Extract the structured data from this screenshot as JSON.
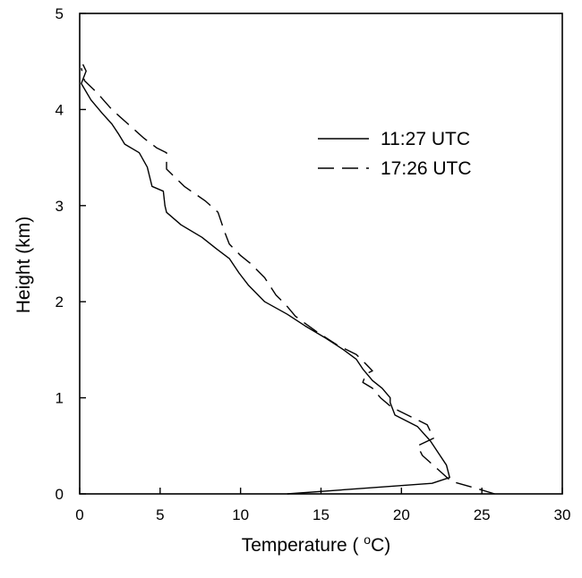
{
  "chart_data": {
    "type": "line",
    "xlabel": "Temperature (°C)",
    "ylabel": "Height (km)",
    "xlim": [
      0,
      30
    ],
    "ylim": [
      0,
      5
    ],
    "xticks": [
      0,
      5,
      10,
      15,
      20,
      25,
      30
    ],
    "yticks": [
      0,
      1,
      2,
      3,
      4,
      5
    ],
    "grid": false,
    "legend_position": "top-right",
    "series": [
      {
        "name": "11:27 UTC",
        "style": "solid",
        "points": [
          [
            12.9,
            0.0
          ],
          [
            21.9,
            0.11
          ],
          [
            23.0,
            0.17
          ],
          [
            22.8,
            0.3
          ],
          [
            21.8,
            0.55
          ],
          [
            21.0,
            0.7
          ],
          [
            19.6,
            0.82
          ],
          [
            19.3,
            0.95
          ],
          [
            19.3,
            1.0
          ],
          [
            18.8,
            1.1
          ],
          [
            18.2,
            1.18
          ],
          [
            17.6,
            1.3
          ],
          [
            17.2,
            1.4
          ],
          [
            16.4,
            1.5
          ],
          [
            15.3,
            1.62
          ],
          [
            14.0,
            1.75
          ],
          [
            12.9,
            1.87
          ],
          [
            11.5,
            2.0
          ],
          [
            10.5,
            2.17
          ],
          [
            9.9,
            2.3
          ],
          [
            9.3,
            2.45
          ],
          [
            8.5,
            2.55
          ],
          [
            7.6,
            2.67
          ],
          [
            6.3,
            2.8
          ],
          [
            5.4,
            2.93
          ],
          [
            5.3,
            3.0
          ],
          [
            5.2,
            3.15
          ],
          [
            4.5,
            3.2
          ],
          [
            4.2,
            3.4
          ],
          [
            3.7,
            3.55
          ],
          [
            2.8,
            3.64
          ],
          [
            2.4,
            3.75
          ],
          [
            2.0,
            3.85
          ],
          [
            1.4,
            3.96
          ],
          [
            0.7,
            4.1
          ],
          [
            0.1,
            4.27
          ],
          [
            0.4,
            4.4
          ],
          [
            0.2,
            4.47
          ]
        ]
      },
      {
        "name": "17:26 UTC",
        "style": "dashed",
        "points": [
          [
            25.8,
            0.0
          ],
          [
            24.4,
            0.07
          ],
          [
            23.1,
            0.13
          ],
          [
            22.3,
            0.25
          ],
          [
            21.3,
            0.4
          ],
          [
            21.0,
            0.5
          ],
          [
            22.0,
            0.58
          ],
          [
            21.6,
            0.72
          ],
          [
            19.4,
            0.9
          ],
          [
            18.7,
            1.0
          ],
          [
            18.2,
            1.1
          ],
          [
            17.6,
            1.16
          ],
          [
            17.8,
            1.25
          ],
          [
            18.2,
            1.28
          ],
          [
            17.8,
            1.35
          ],
          [
            17.2,
            1.45
          ],
          [
            16.0,
            1.55
          ],
          [
            14.8,
            1.68
          ],
          [
            13.8,
            1.8
          ],
          [
            13.4,
            1.85
          ],
          [
            12.8,
            1.97
          ],
          [
            12.2,
            2.07
          ],
          [
            11.5,
            2.25
          ],
          [
            10.6,
            2.4
          ],
          [
            10.0,
            2.48
          ],
          [
            9.3,
            2.6
          ],
          [
            9.0,
            2.73
          ],
          [
            8.6,
            2.93
          ],
          [
            7.8,
            3.05
          ],
          [
            6.5,
            3.2
          ],
          [
            5.4,
            3.38
          ],
          [
            5.4,
            3.55
          ],
          [
            4.8,
            3.6
          ],
          [
            4.0,
            3.7
          ],
          [
            3.0,
            3.85
          ],
          [
            2.0,
            4.0
          ],
          [
            1.1,
            4.17
          ],
          [
            0.3,
            4.3
          ],
          [
            0.1,
            4.43
          ]
        ]
      }
    ]
  }
}
